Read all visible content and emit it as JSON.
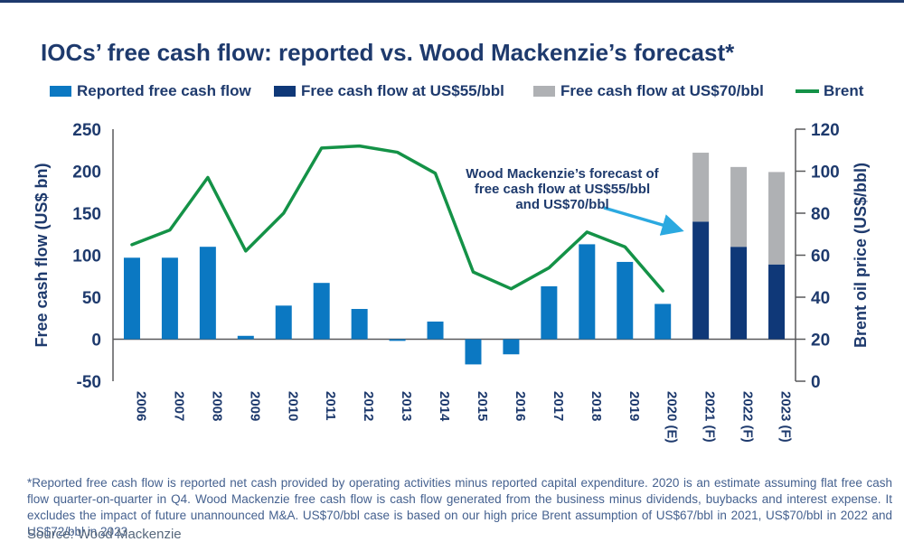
{
  "page": {
    "title": "IOCs’ free cash flow: reported vs. Wood Mackenzie’s forecast*",
    "footnote": "*Reported free cash flow is reported net cash provided by operating activities minus reported capital expenditure. 2020 is an estimate assuming flat free cash flow quarter-on-quarter in Q4. Wood Mackenzie free cash flow is cash flow generated from the business minus dividends, buybacks and interest expense. It excludes the impact of future unannounced M&A. US$70/bbl case is based on our high price Brent assumption of US$67/bbl in 2021, US$70/bbl in 2022 and US$72/bbl in 2023.",
    "source": "Source: Wood Mackenzie",
    "accent_navy": "#1E3A6D",
    "top_rule_color": "#1E3A6D"
  },
  "legend": {
    "items": [
      {
        "label": "Reported free cash flow",
        "color": "#0B78C2",
        "type": "swatch"
      },
      {
        "label": "Free cash flow at US$55/bbl",
        "color": "#0F3878",
        "type": "swatch"
      },
      {
        "label": "Free cash flow at US$70/bbl",
        "color": "#AFB1B4",
        "type": "swatch"
      },
      {
        "label": "Brent",
        "color": "#149247",
        "type": "line"
      }
    ],
    "positions_x": [
      55,
      303,
      590,
      880
    ]
  },
  "annotation": {
    "line1": "Wood Mackenzie’s forecast of",
    "line2": "free cash flow at US$55/bbl",
    "line3": "and US$70/bbl",
    "arrow_color": "#2BA9E0"
  },
  "chart_data": {
    "type": "bar+line dual-axis combo",
    "categories": [
      "2006",
      "2007",
      "2008",
      "2009",
      "2010",
      "2011",
      "2012",
      "2013",
      "2014",
      "2015",
      "2016",
      "2017",
      "2018",
      "2019",
      "2020 (E)",
      "2021 (F)",
      "2022 (F)",
      "2023 (F)"
    ],
    "series": [
      {
        "name": "Reported free cash flow",
        "type": "bar",
        "axis": "left",
        "color": "#0B78C2",
        "values": [
          97,
          97,
          110,
          4,
          40,
          67,
          36,
          -2,
          21,
          -30,
          -18,
          63,
          113,
          92,
          42,
          null,
          null,
          null
        ]
      },
      {
        "name": "Free cash flow at US$55/bbl",
        "type": "bar",
        "axis": "left",
        "color": "#0F3878",
        "values": [
          null,
          null,
          null,
          null,
          null,
          null,
          null,
          null,
          null,
          null,
          null,
          null,
          null,
          null,
          null,
          140,
          110,
          89
        ]
      },
      {
        "name": "Free cash flow at US$70/bbl (increment stacked on US$55/bbl)",
        "type": "bar-stacked",
        "axis": "left",
        "color": "#AFB1B4",
        "values": [
          null,
          null,
          null,
          null,
          null,
          null,
          null,
          null,
          null,
          null,
          null,
          null,
          null,
          null,
          null,
          82,
          95,
          110
        ],
        "stack_totals": [
          null,
          null,
          null,
          null,
          null,
          null,
          null,
          null,
          null,
          null,
          null,
          null,
          null,
          null,
          null,
          222,
          205,
          199
        ]
      },
      {
        "name": "Brent",
        "type": "line",
        "axis": "right",
        "color": "#149247",
        "values": [
          65,
          72,
          97,
          62,
          80,
          111,
          112,
          109,
          99,
          52,
          44,
          54,
          71,
          64,
          43,
          null,
          null,
          null
        ]
      }
    ],
    "left_axis": {
      "label": "Free cash flow (US$ bn)",
      "min": -50,
      "max": 250,
      "step": 50
    },
    "right_axis": {
      "label": "Brent oil price (US$/bbl)",
      "min": 0,
      "max": 120,
      "step": 20
    },
    "grid": false,
    "legend_position": "top",
    "axis_line_color": "#58595B",
    "tick_text_color": "#1E3A6D"
  }
}
